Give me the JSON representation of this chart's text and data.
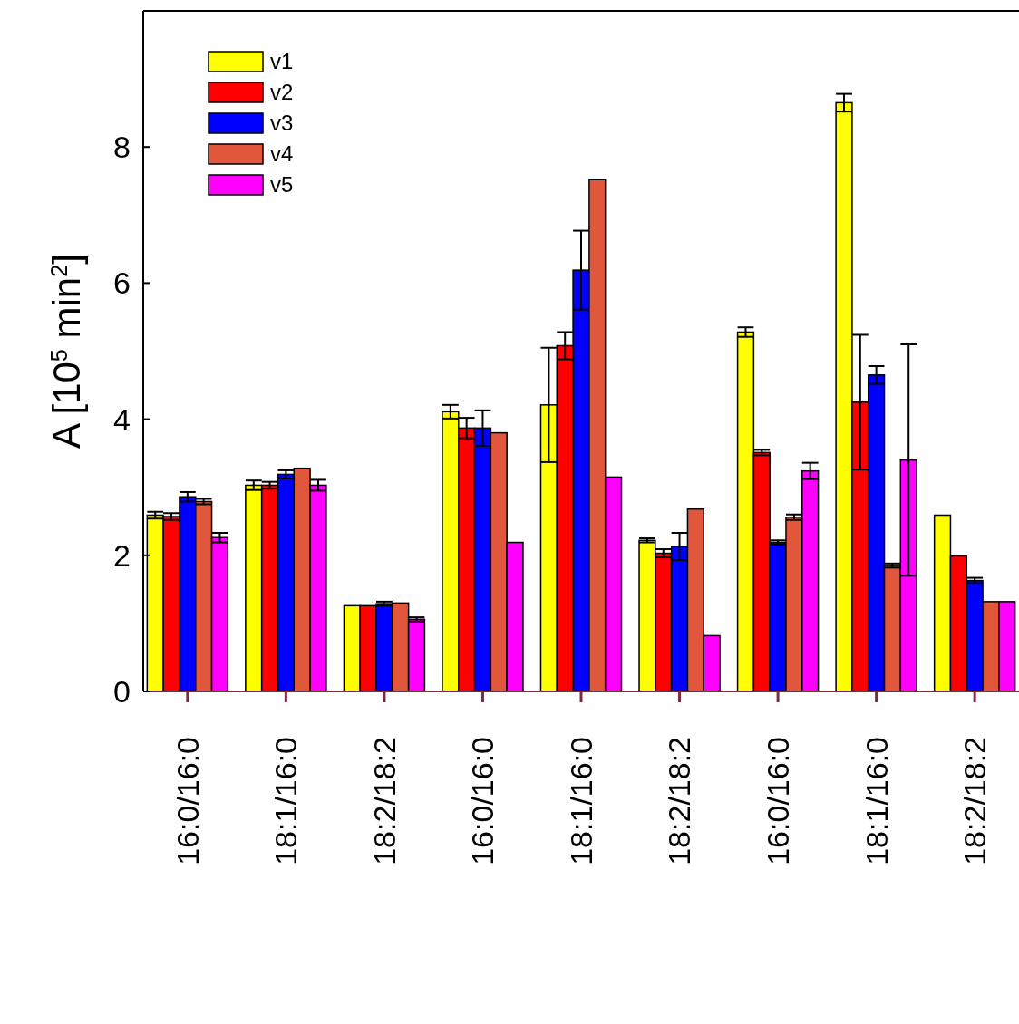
{
  "chart_data": {
    "type": "bar",
    "ylabel": "A [10$^{5}$ min$^{2}$]",
    "categories": [
      "16:0/16:0",
      "18:1/16:0",
      "18:2/18:2",
      "16:0/16:0",
      "18:1/16:0",
      "18:2/18:2",
      "16:0/16:0",
      "18:1/16:0",
      "18:2/18:2"
    ],
    "series": [
      {
        "name": "v1",
        "color": "#ffff00",
        "values": [
          2.59,
          3.03,
          1.26,
          4.11,
          4.21,
          2.22,
          5.28,
          8.65,
          2.59
        ],
        "errors": [
          0.05,
          0.07,
          null,
          0.1,
          0.84,
          0.03,
          0.07,
          0.13,
          null
        ]
      },
      {
        "name": "v2",
        "color": "#ff0000",
        "values": [
          2.57,
          3.03,
          1.26,
          3.87,
          5.08,
          2.03,
          3.51,
          4.25,
          1.99
        ],
        "errors": [
          0.05,
          0.05,
          null,
          0.15,
          0.2,
          0.06,
          0.04,
          0.99,
          null
        ]
      },
      {
        "name": "v3",
        "color": "#0000ff",
        "values": [
          2.86,
          3.19,
          1.29,
          3.87,
          6.19,
          2.13,
          2.19,
          4.65,
          1.63
        ],
        "errors": [
          0.07,
          0.06,
          0.03,
          0.26,
          0.58,
          0.2,
          0.03,
          0.13,
          0.04
        ]
      },
      {
        "name": "v4",
        "color": "#e0573b",
        "values": [
          2.79,
          3.28,
          1.3,
          3.8,
          7.52,
          2.68,
          2.56,
          1.85,
          1.32
        ],
        "errors": [
          0.04,
          null,
          null,
          null,
          null,
          null,
          0.04,
          0.03,
          null
        ]
      },
      {
        "name": "v5",
        "color": "#ff00ff",
        "values": [
          2.26,
          3.03,
          1.06,
          2.19,
          3.15,
          0.82,
          3.24,
          3.4,
          1.32
        ],
        "errors": [
          0.07,
          0.08,
          0.03,
          null,
          null,
          null,
          0.12,
          1.7,
          null
        ]
      }
    ],
    "ylim": [
      0,
      10
    ],
    "yticks": [
      0,
      2,
      4,
      6,
      8
    ],
    "grid": false,
    "legend": "top left"
  }
}
